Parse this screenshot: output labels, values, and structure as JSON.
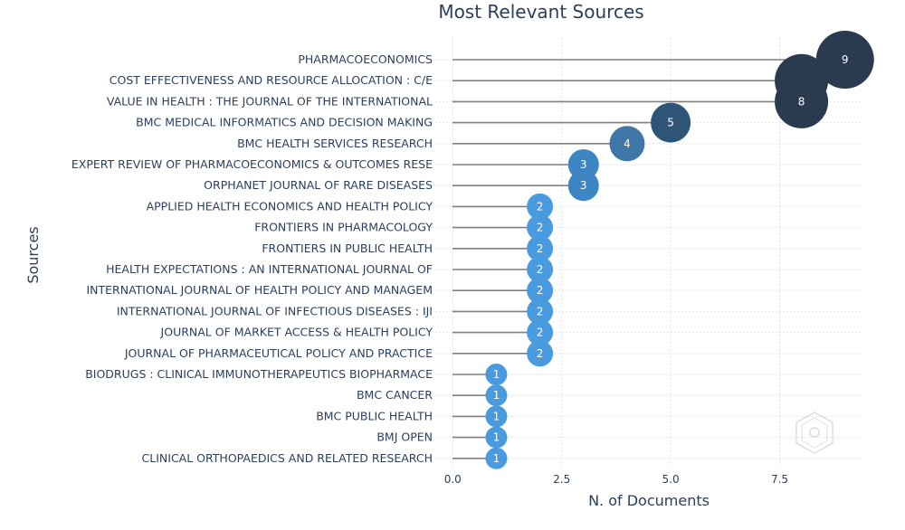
{
  "chart_data": {
    "type": "scatter",
    "title": "Most Relevant Sources",
    "xlabel": "N. of Documents",
    "ylabel": "Sources",
    "xlim": [
      -0.4,
      9.4
    ],
    "xticks": [
      "0.0",
      "2.5",
      "5.0",
      "7.5"
    ],
    "xtick_values": [
      0,
      2.5,
      5,
      7.5
    ],
    "grid": true,
    "categories": [
      "PHARMACOECONOMICS",
      "COST EFFECTIVENESS AND RESOURCE ALLOCATION : C/E",
      "VALUE IN HEALTH : THE JOURNAL OF THE INTERNATIONAL",
      "BMC MEDICAL INFORMATICS AND DECISION MAKING",
      "BMC HEALTH SERVICES RESEARCH",
      "EXPERT REVIEW OF PHARMACOECONOMICS & OUTCOMES RESE",
      "ORPHANET JOURNAL OF RARE DISEASES",
      "APPLIED HEALTH ECONOMICS AND HEALTH POLICY",
      "FRONTIERS IN PHARMACOLOGY",
      "FRONTIERS IN PUBLIC HEALTH",
      "HEALTH EXPECTATIONS : AN INTERNATIONAL JOURNAL OF",
      "INTERNATIONAL JOURNAL OF HEALTH POLICY AND MANAGEM",
      "INTERNATIONAL JOURNAL OF INFECTIOUS DISEASES : IJI",
      "JOURNAL OF MARKET ACCESS & HEALTH POLICY",
      "JOURNAL OF PHARMACEUTICAL POLICY AND PRACTICE",
      "BIODRUGS : CLINICAL IMMUNOTHERAPEUTICS BIOPHARMACE",
      "BMC CANCER",
      "BMC PUBLIC HEALTH",
      "BMJ OPEN",
      "CLINICAL ORTHOPAEDICS AND RELATED RESEARCH"
    ],
    "values": [
      9,
      8,
      8,
      5,
      4,
      3,
      3,
      2,
      2,
      2,
      2,
      2,
      2,
      2,
      2,
      1,
      1,
      1,
      1,
      1
    ],
    "colors": {
      "9": "#2a3a4f",
      "8": "#2a3a4f",
      "5": "#2f5576",
      "4": "#3f78a8",
      "3": "#3d86c3",
      "2": "#4a9ae0",
      "1": "#4a9ae0"
    },
    "stem_color": "#7f7f7f"
  }
}
